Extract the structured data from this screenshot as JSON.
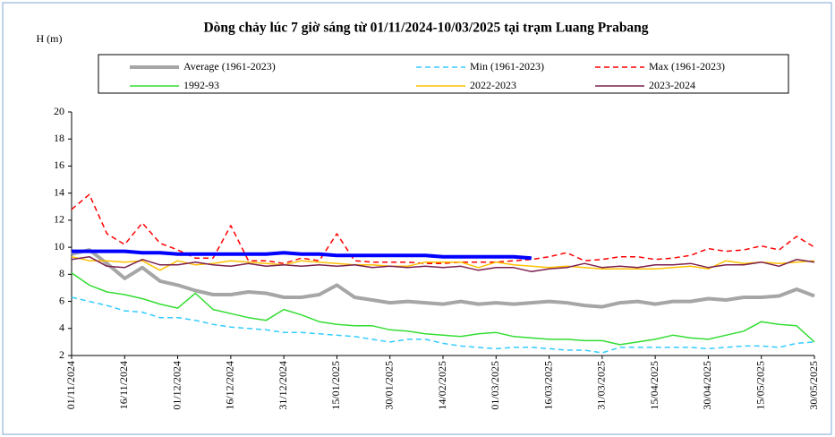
{
  "chart_data": {
    "type": "line",
    "title": "Dòng chảy lúc 7 giờ sáng từ 01/11/2024-10/03/2025 tại trạm Luang Prabang",
    "y_label": "H (m)",
    "x": [
      0,
      5,
      10,
      15,
      20,
      25,
      30,
      35,
      40,
      45,
      50,
      55,
      60,
      65,
      70,
      75,
      80,
      85,
      90,
      95,
      100,
      105,
      110,
      115,
      120,
      125,
      130,
      135,
      140,
      145,
      150,
      155,
      160,
      165,
      170,
      175,
      180,
      185,
      190,
      195,
      200,
      205,
      210
    ],
    "xlim": [
      0,
      210
    ],
    "xticks": [
      {
        "value": 0,
        "label": "01/11/2024"
      },
      {
        "value": 15,
        "label": "16/11/2024"
      },
      {
        "value": 30,
        "label": "01/12/2024"
      },
      {
        "value": 45,
        "label": "16/12/2024"
      },
      {
        "value": 60,
        "label": "31/12/2024"
      },
      {
        "value": 75,
        "label": "15/01/2025"
      },
      {
        "value": 90,
        "label": "30/01/2025"
      },
      {
        "value": 105,
        "label": "14/02/2025"
      },
      {
        "value": 120,
        "label": "01/03/2025"
      },
      {
        "value": 135,
        "label": "16/03/2025"
      },
      {
        "value": 150,
        "label": "31/03/2025"
      },
      {
        "value": 165,
        "label": "15/04/2025"
      },
      {
        "value": 180,
        "label": "30/04/2025"
      },
      {
        "value": 195,
        "label": "15/05/2025"
      },
      {
        "value": 210,
        "label": "30/05/2025"
      }
    ],
    "ylim": [
      2,
      20
    ],
    "yticks": [
      2,
      4,
      6,
      8,
      10,
      12,
      14,
      16,
      18,
      20
    ],
    "grid": false,
    "legend": "top",
    "series": [
      {
        "name": "Average (1961-2023)",
        "color": "#a6a6a6",
        "style": "thick",
        "values": [
          9.5,
          9.8,
          8.8,
          7.7,
          8.5,
          7.5,
          7.2,
          6.8,
          6.5,
          6.5,
          6.7,
          6.6,
          6.3,
          6.3,
          6.5,
          7.2,
          6.3,
          6.1,
          5.9,
          6.0,
          5.9,
          5.8,
          6.0,
          5.8,
          5.9,
          5.8,
          5.9,
          6.0,
          5.9,
          5.7,
          5.6,
          5.9,
          6.0,
          5.8,
          6.0,
          6.0,
          6.2,
          6.1,
          6.3,
          6.3,
          6.4,
          6.9,
          6.4
        ]
      },
      {
        "name": "Min (1961-2023)",
        "color": "#33ccff",
        "style": "dashed",
        "values": [
          6.3,
          6.0,
          5.7,
          5.3,
          5.2,
          4.8,
          4.8,
          4.6,
          4.3,
          4.1,
          4.0,
          3.9,
          3.7,
          3.7,
          3.6,
          3.5,
          3.4,
          3.2,
          3.0,
          3.2,
          3.2,
          2.9,
          2.7,
          2.6,
          2.5,
          2.6,
          2.6,
          2.5,
          2.4,
          2.4,
          2.2,
          2.6,
          2.6,
          2.6,
          2.6,
          2.6,
          2.5,
          2.6,
          2.7,
          2.7,
          2.6,
          2.9,
          3.0
        ]
      },
      {
        "name": "Max (1961-2023)",
        "color": "#ff0000",
        "style": "dashed",
        "values": [
          12.8,
          13.9,
          11.0,
          10.2,
          11.8,
          10.3,
          9.8,
          9.2,
          9.2,
          11.6,
          9.0,
          9.0,
          8.8,
          9.2,
          9.0,
          11.0,
          9.0,
          8.9,
          8.9,
          8.9,
          8.8,
          8.8,
          8.9,
          8.9,
          8.9,
          9.0,
          9.1,
          9.3,
          9.6,
          9.0,
          9.1,
          9.3,
          9.3,
          9.1,
          9.2,
          9.4,
          9.9,
          9.7,
          9.8,
          10.1,
          9.8,
          10.8,
          10.0
        ]
      },
      {
        "name": "1992-93",
        "color": "#33dd33",
        "style": "solid",
        "values": [
          8.1,
          7.2,
          6.7,
          6.5,
          6.2,
          5.8,
          5.5,
          6.6,
          5.4,
          5.1,
          4.8,
          4.6,
          5.4,
          5.0,
          4.5,
          4.3,
          4.2,
          4.2,
          3.9,
          3.8,
          3.6,
          3.5,
          3.4,
          3.6,
          3.7,
          3.4,
          3.3,
          3.2,
          3.2,
          3.1,
          3.1,
          2.8,
          3.0,
          3.2,
          3.5,
          3.3,
          3.2,
          3.5,
          3.8,
          4.5,
          4.3,
          4.2,
          3.0
        ]
      },
      {
        "name": "2022-2023",
        "color": "#ffc000",
        "style": "solid",
        "values": [
          9.3,
          9.0,
          9.0,
          8.9,
          9.0,
          8.3,
          9.0,
          8.7,
          8.8,
          9.0,
          8.9,
          8.8,
          8.7,
          9.0,
          8.9,
          8.8,
          8.7,
          8.7,
          8.6,
          8.6,
          8.9,
          8.9,
          8.9,
          8.5,
          8.9,
          8.7,
          8.6,
          8.5,
          8.6,
          8.5,
          8.4,
          8.4,
          8.4,
          8.4,
          8.5,
          8.6,
          8.4,
          9.0,
          8.8,
          8.9,
          8.8,
          8.9,
          9.0
        ]
      },
      {
        "name": "2023-2024",
        "color": "#7b2050",
        "style": "solid",
        "values": [
          9.1,
          9.3,
          8.6,
          8.5,
          9.1,
          8.7,
          8.7,
          8.9,
          8.7,
          8.6,
          8.8,
          8.6,
          8.7,
          8.6,
          8.7,
          8.6,
          8.7,
          8.5,
          8.6,
          8.5,
          8.6,
          8.5,
          8.6,
          8.3,
          8.5,
          8.5,
          8.2,
          8.4,
          8.5,
          8.8,
          8.5,
          8.6,
          8.5,
          8.7,
          8.7,
          8.8,
          8.5,
          8.7,
          8.7,
          8.9,
          8.6,
          9.1,
          8.9
        ]
      },
      {
        "color": "#0000ff",
        "style": "thick",
        "values": [
          9.7,
          9.7,
          9.7,
          9.7,
          9.6,
          9.6,
          9.5,
          9.5,
          9.5,
          9.5,
          9.5,
          9.5,
          9.6,
          9.5,
          9.5,
          9.4,
          9.4,
          9.4,
          9.4,
          9.4,
          9.4,
          9.3,
          9.3,
          9.3,
          9.3,
          9.3,
          9.2,
          null,
          null,
          null,
          null,
          null,
          null,
          null,
          null,
          null,
          null,
          null,
          null,
          null,
          null,
          null,
          null
        ]
      }
    ]
  }
}
